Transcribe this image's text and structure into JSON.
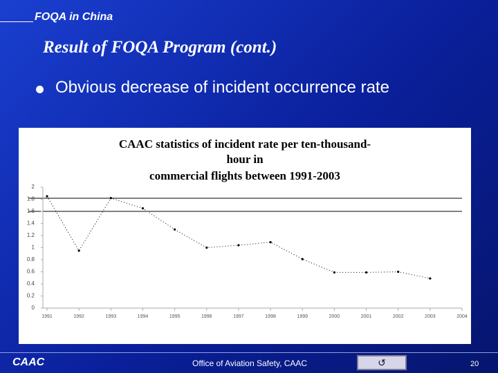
{
  "slide": {
    "header": "FOQA in China",
    "heading": "Result of FOQA Program (cont.)",
    "bullet": "Obvious decrease of incident occurrence rate",
    "footer_left": "CAAC",
    "footer_center": "Office of Aviation Safety, CAAC",
    "page_number": "20"
  },
  "chart_data": {
    "type": "line",
    "title": [
      "CAAC statistics of incident rate per ten-thousand-",
      "hour in",
      "commercial flights between 1991-2003"
    ],
    "x": [
      1991,
      1992,
      1993,
      1994,
      1995,
      1996,
      1997,
      1998,
      1999,
      2000,
      2001,
      2002,
      2003
    ],
    "series": [
      {
        "color": "#000000",
        "values": [
          1.85,
          0.95,
          1.82,
          1.65,
          1.3,
          1.0,
          1.04,
          1.09,
          0.81,
          0.59,
          0.59,
          0.6,
          0.49
        ]
      }
    ],
    "xlim": [
      1991,
      2004
    ],
    "xticks": [
      1991,
      1992,
      1993,
      1994,
      1995,
      1996,
      1997,
      1998,
      1999,
      2000,
      2001,
      2002,
      2003,
      2004
    ],
    "ylim": [
      0,
      2
    ],
    "yticks": [
      0,
      0.2,
      0.4,
      0.6,
      0.8,
      1,
      1.2,
      1.4,
      1.6,
      1.8,
      2
    ]
  }
}
